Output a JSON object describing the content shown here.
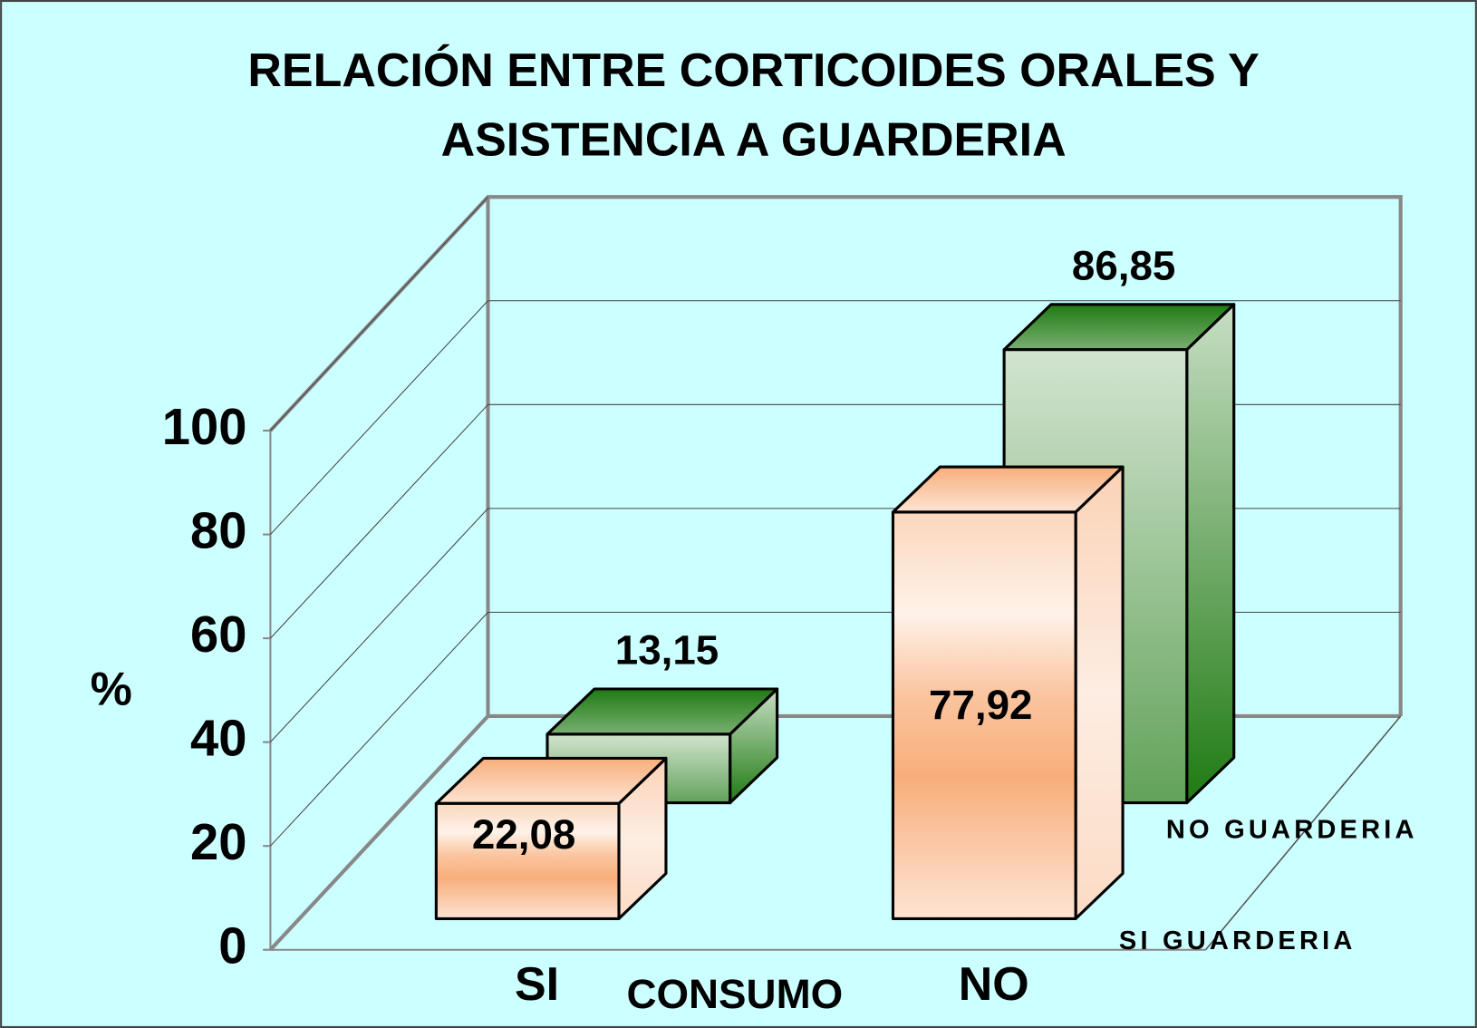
{
  "chart_data": {
    "type": "bar",
    "title": [
      "RELACIÓN ENTRE CORTICOIDES ORALES Y",
      "ASISTENCIA A GUARDERIA"
    ],
    "y_label": "%",
    "x_label": "CONSUMO",
    "categories": [
      "SI",
      "NO"
    ],
    "series": [
      {
        "name": "SI GUARDERIA",
        "color": "#f7a56c",
        "values": [
          22.08,
          77.92
        ],
        "value_labels": [
          "22,08",
          "77,92"
        ]
      },
      {
        "name": "NO GUARDERIA",
        "color": "#1f7a12",
        "values": [
          13.15,
          86.85
        ],
        "value_labels": [
          "13,15",
          "86,85"
        ]
      }
    ],
    "ylim": [
      0,
      100
    ],
    "yticks": [
      0,
      20,
      40,
      60,
      80,
      100
    ],
    "grid": true
  }
}
